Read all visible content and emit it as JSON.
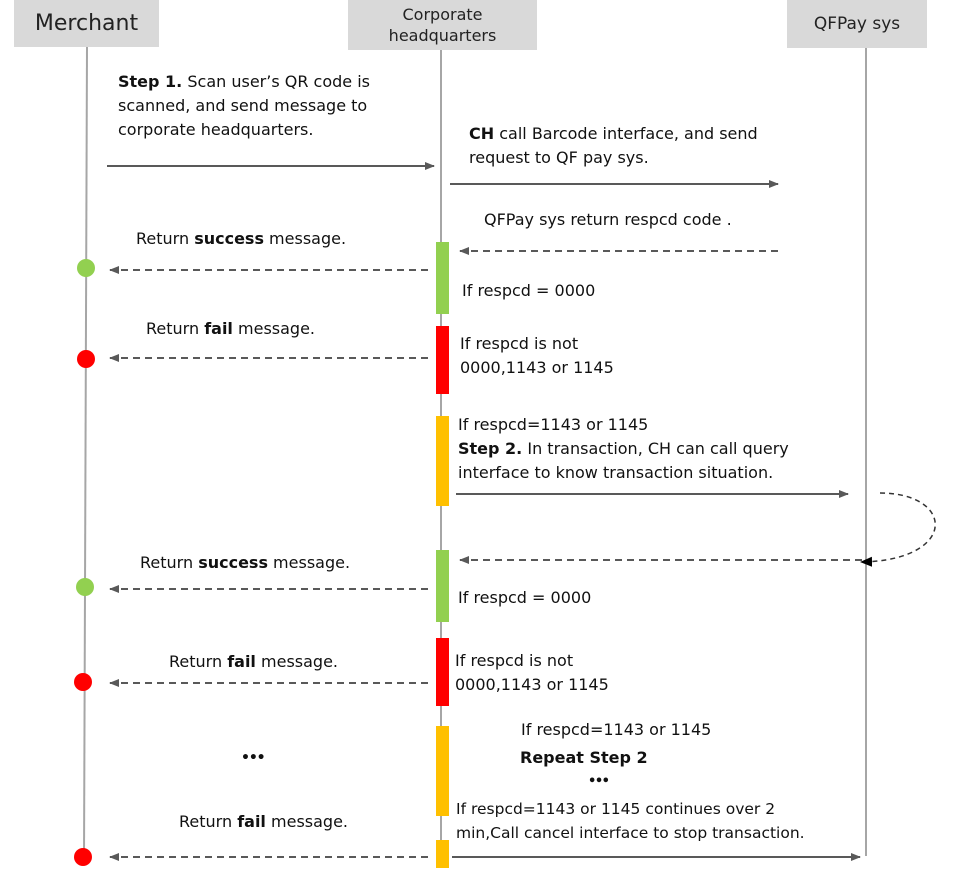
{
  "lanes": {
    "merchant": "Merchant",
    "ch_line1": "Corporate",
    "ch_line2": "headquarters",
    "qfpay": "QFPay sys"
  },
  "colors": {
    "lifeline": "#a6a6a6",
    "arrow": "#595959",
    "success": "#92d050",
    "fail": "#ff0000",
    "pending": "#ffc000"
  },
  "messages": {
    "step1_bold": "Step 1.",
    "step1_l1": "Scan user’s QR code is",
    "step1_l2": "scanned, and send message to",
    "step1_l3": "corporate headquarters.",
    "ch_bold": "CH",
    "ch_l1": "call  Barcode interface, and send",
    "ch_l2": "request to QF pay sys.",
    "qf_return": "QFPay sys return respcd code .",
    "ret1_a": "Return ",
    "ret1_b": "success",
    "ret1_c": " message.",
    "cond_0000_1": "If respcd = 0000",
    "ret2_a": "Return ",
    "ret2_b": "fail",
    "ret2_c": " message.",
    "cond_not_1a": "If  respcd is not",
    "cond_not_1b": "0000,1143 or 1145",
    "cond_1143_1": "If respcd=1143 or 1145",
    "step2_bold": "Step 2.",
    "step2_l1": "In transaction, CH can call query",
    "step2_l2": "interface to know transaction situation.",
    "ret3_a": "Return ",
    "ret3_b": "success",
    "ret3_c": " message.",
    "cond_0000_2": "If respcd = 0000",
    "ret4_a": "Return ",
    "ret4_b": "fail",
    "ret4_c": " message.",
    "cond_not_2a": "If  respcd is not",
    "cond_not_2b": "0000,1143 or 1145",
    "cond_1143_2": "If respcd=1143 or 1145",
    "repeat": "Repeat Step 2",
    "ellipsis_center": "• • •",
    "ellipsis_left": "• • •",
    "cancel_l1": "If respcd=1143 or 1145 continues over 2",
    "cancel_l2": "min,Call cancel interface to stop transaction.",
    "ret5_a": "Return ",
    "ret5_b": "fail",
    "ret5_c": " message."
  }
}
